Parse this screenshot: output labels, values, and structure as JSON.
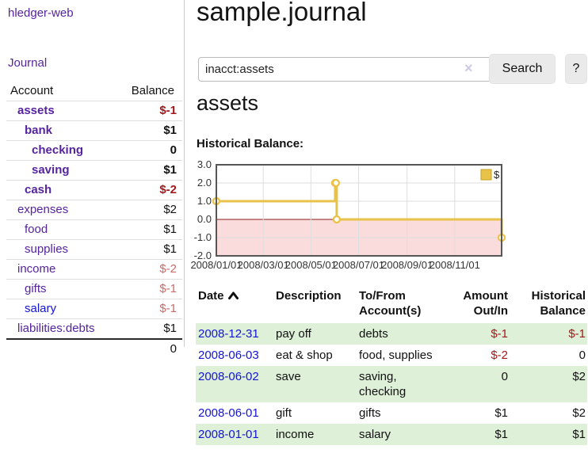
{
  "colors": {
    "link_purple": "#55249e",
    "link_blue": "#1414d2",
    "neg_strong": "#a2191d",
    "neg_soft": "#c76b6b",
    "row_green": "#def0d8",
    "chart_gold": "#e9c24a",
    "chart_gold_border": "#c7a21f",
    "chart_pink": "#fbdcdc",
    "chart_zero_line": "#8f1a1a",
    "chart_grid": "#dedede",
    "chart_border": "#565656"
  },
  "brand": {
    "label": "hledger-web"
  },
  "nav": {
    "journal_label": "Journal"
  },
  "sidebar": {
    "headers": {
      "account": "Account",
      "balance": "Balance"
    },
    "accounts": [
      {
        "name": "assets",
        "depth": 1,
        "balance": "$-1",
        "bold": true,
        "balance_tone": "neg-strong",
        "link_tone": "purple"
      },
      {
        "name": "bank",
        "depth": 2,
        "balance": "$1",
        "bold": true,
        "balance_tone": "normal",
        "link_tone": "purple"
      },
      {
        "name": "checking",
        "depth": 3,
        "balance": "0",
        "bold": true,
        "balance_tone": "normal",
        "link_tone": "purple"
      },
      {
        "name": "saving",
        "depth": 3,
        "balance": "$1",
        "bold": true,
        "balance_tone": "normal",
        "link_tone": "purple"
      },
      {
        "name": "cash",
        "depth": 2,
        "balance": "$-2",
        "bold": true,
        "balance_tone": "neg-strong",
        "link_tone": "purple"
      },
      {
        "name": "expenses",
        "depth": 1,
        "balance": "$2",
        "bold": false,
        "balance_tone": "normal",
        "link_tone": "purple"
      },
      {
        "name": "food",
        "depth": 2,
        "balance": "$1",
        "bold": false,
        "balance_tone": "normal",
        "link_tone": "purple"
      },
      {
        "name": "supplies",
        "depth": 2,
        "balance": "$1",
        "bold": false,
        "balance_tone": "normal",
        "link_tone": "purple"
      },
      {
        "name": "income",
        "depth": 1,
        "balance": "$-2",
        "bold": false,
        "balance_tone": "neg-soft",
        "link_tone": "purple"
      },
      {
        "name": "gifts",
        "depth": 2,
        "balance": "$-1",
        "bold": false,
        "balance_tone": "neg-soft",
        "link_tone": "purple"
      },
      {
        "name": "salary",
        "depth": 2,
        "balance": "$-1",
        "bold": false,
        "balance_tone": "neg-soft",
        "link_tone": "blue"
      },
      {
        "name": "liabilities:debts",
        "depth": 1,
        "balance": "$1",
        "bold": false,
        "balance_tone": "normal",
        "link_tone": "purple"
      }
    ],
    "total": "0"
  },
  "main": {
    "title": "sample.journal",
    "search": {
      "value": "inacct:assets",
      "clear_icon": "×",
      "search_button": "Search",
      "help_button": "?"
    },
    "account_heading": "assets",
    "chart_heading": "Historical Balance:"
  },
  "chart_data": {
    "type": "line",
    "step": true,
    "title": "Historical Balance:",
    "series": [
      {
        "name": "$",
        "color": "#e9c24a",
        "points": [
          {
            "date": "2008-01-01",
            "value": 1
          },
          {
            "date": "2008-06-01",
            "value": 2
          },
          {
            "date": "2008-06-02",
            "value": 2
          },
          {
            "date": "2008-06-03",
            "value": 0
          },
          {
            "date": "2008-12-31",
            "value": -1
          }
        ]
      }
    ],
    "x_start": "2008-01-01",
    "x_end": "2008-12-31",
    "x_tick_dates": [
      "2008-01-01",
      "2008-03-01",
      "2008-05-01",
      "2008-07-01",
      "2008-09-01",
      "2008-11-01"
    ],
    "x_tick_labels": [
      "2008/01/01",
      "2008/03/01",
      "2008/05/01",
      "2008/07/01",
      "2008/09/01",
      "2008/11/01"
    ],
    "y_ticks": [
      3.0,
      2.0,
      1.0,
      0.0,
      -1.0,
      -2.0
    ],
    "y_tick_labels": [
      "3.0",
      "2.0",
      "1.0",
      "0.0",
      "-1.0",
      "-2.0"
    ],
    "ylim": [
      -2,
      3
    ],
    "grid": true,
    "negative_region_shaded": true,
    "legend": {
      "label": "$",
      "position": "top-right"
    }
  },
  "register": {
    "sort": {
      "column": "Date",
      "direction": "asc"
    },
    "columns": [
      {
        "label": "Date",
        "align": "left",
        "sorted": true
      },
      {
        "label": "Description",
        "align": "left"
      },
      {
        "label": "To/From Account(s)",
        "align": "left"
      },
      {
        "label": "Amount Out/In",
        "align": "right"
      },
      {
        "label": "Historical Balance",
        "align": "right"
      }
    ],
    "rows": [
      {
        "date": "2008-12-31",
        "description": "pay off",
        "accounts": "debts",
        "amount": "$-1",
        "amount_tone": "neg-strong",
        "balance": "$-1",
        "balance_tone": "neg-strong",
        "striped": true
      },
      {
        "date": "2008-06-03",
        "description": "eat & shop",
        "accounts": "food, supplies",
        "amount": "$-2",
        "amount_tone": "neg-strong",
        "balance": "0",
        "balance_tone": "normal",
        "striped": false
      },
      {
        "date": "2008-06-02",
        "description": "save",
        "accounts": "saving, checking",
        "amount": "0",
        "amount_tone": "normal",
        "balance": "$2",
        "balance_tone": "normal",
        "striped": true
      },
      {
        "date": "2008-06-01",
        "description": "gift",
        "accounts": "gifts",
        "amount": "$1",
        "amount_tone": "normal",
        "balance": "$2",
        "balance_tone": "normal",
        "striped": false
      },
      {
        "date": "2008-01-01",
        "description": "income",
        "accounts": "salary",
        "amount": "$1",
        "amount_tone": "normal",
        "balance": "$1",
        "balance_tone": "normal",
        "striped": true
      }
    ]
  }
}
